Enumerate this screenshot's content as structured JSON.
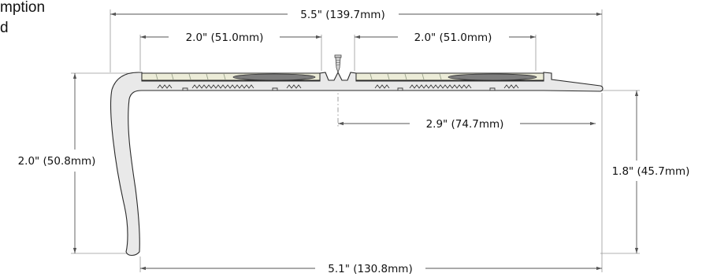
{
  "corner_text": {
    "line1": "mption",
    "line2": "d"
  },
  "dimensions": {
    "overall_width": "5.5\" (139.7mm)",
    "insert_left": "2.0\" (51.0mm)",
    "insert_right": "2.0\" (51.0mm)",
    "center_to_edge": "2.9\" (74.7mm)",
    "nose_height": "2.0\" (50.8mm)",
    "back_height": "1.8\" (45.7mm)",
    "bottom_width": "5.1\" (130.8mm)"
  },
  "colors": {
    "profile_fill": "#e9e9e9",
    "insert_fill": "#ececd8",
    "oval_fill": "#7d7d7d",
    "line": "#555555"
  }
}
